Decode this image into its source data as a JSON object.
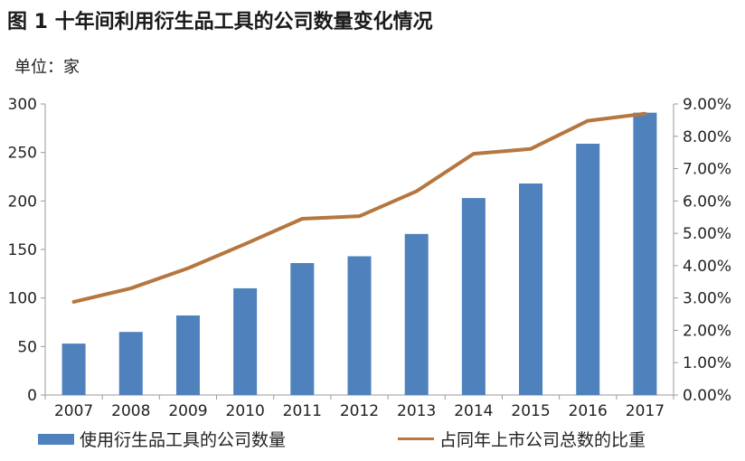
{
  "title": "图 1  十年间利用衍生品工具的公司数量变化情况",
  "unit": "单位：家",
  "chart_data": {
    "type": "bar",
    "categories": [
      "2007",
      "2008",
      "2009",
      "2010",
      "2011",
      "2012",
      "2013",
      "2014",
      "2015",
      "2016",
      "2017"
    ],
    "series": [
      {
        "name": "使用衍生品工具的公司数量",
        "type": "bar",
        "axis": "left",
        "values": [
          53,
          65,
          82,
          110,
          136,
          143,
          166,
          203,
          218,
          259,
          291
        ]
      },
      {
        "name": "占同年上市公司总数的比重",
        "type": "line",
        "axis": "right",
        "values": [
          0.0288,
          0.033,
          0.0392,
          0.0467,
          0.0545,
          0.0553,
          0.063,
          0.0746,
          0.0761,
          0.0848,
          0.087
        ]
      }
    ],
    "y_left": {
      "ylim": [
        0,
        300
      ],
      "ticks": [
        "0",
        "50",
        "100",
        "150",
        "200",
        "250",
        "300"
      ]
    },
    "y_right": {
      "ylim": [
        0,
        0.09
      ],
      "ticks": [
        "0.00%",
        "1.00%",
        "2.00%",
        "3.00%",
        "4.00%",
        "5.00%",
        "6.00%",
        "7.00%",
        "8.00%",
        "9.00%"
      ]
    },
    "grid": false,
    "legend": "bottom",
    "colors": {
      "bar": "#4f81bd",
      "line": "#b5773f",
      "axis": "#9a9a9a"
    }
  }
}
